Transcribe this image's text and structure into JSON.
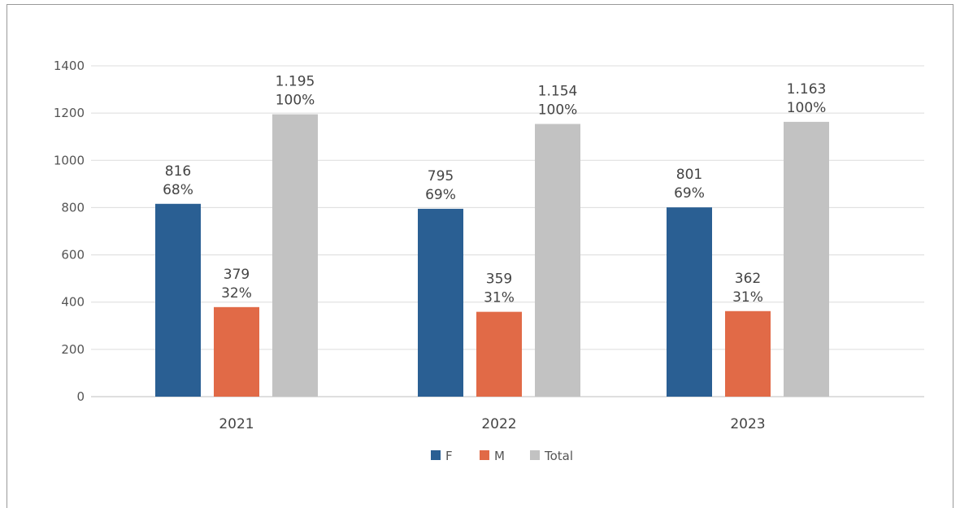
{
  "chart_data": {
    "type": "bar",
    "categories": [
      "2021",
      "2022",
      "2023"
    ],
    "series": [
      {
        "name": "F",
        "color": "#2a5f93",
        "values": [
          816,
          795,
          801
        ],
        "labels": [
          [
            "816",
            "68%"
          ],
          [
            "795",
            "69%"
          ],
          [
            "801",
            "69%"
          ]
        ]
      },
      {
        "name": "M",
        "color": "#e16a47",
        "values": [
          379,
          359,
          362
        ],
        "labels": [
          [
            "379",
            "32%"
          ],
          [
            "359",
            "31%"
          ],
          [
            "362",
            "31%"
          ]
        ]
      },
      {
        "name": "Total",
        "color": "#c2c2c2",
        "values": [
          1195,
          1154,
          1163
        ],
        "labels": [
          [
            "1.195",
            "100%"
          ],
          [
            "1.154",
            "100%"
          ],
          [
            "1.163",
            "100%"
          ]
        ]
      }
    ],
    "title": "",
    "xlabel": "",
    "ylabel": "",
    "ylim": [
      0,
      1400
    ],
    "yticks": [
      0,
      200,
      400,
      600,
      800,
      1000,
      1200,
      1400
    ],
    "grid": true,
    "legend_position": "bottom"
  }
}
